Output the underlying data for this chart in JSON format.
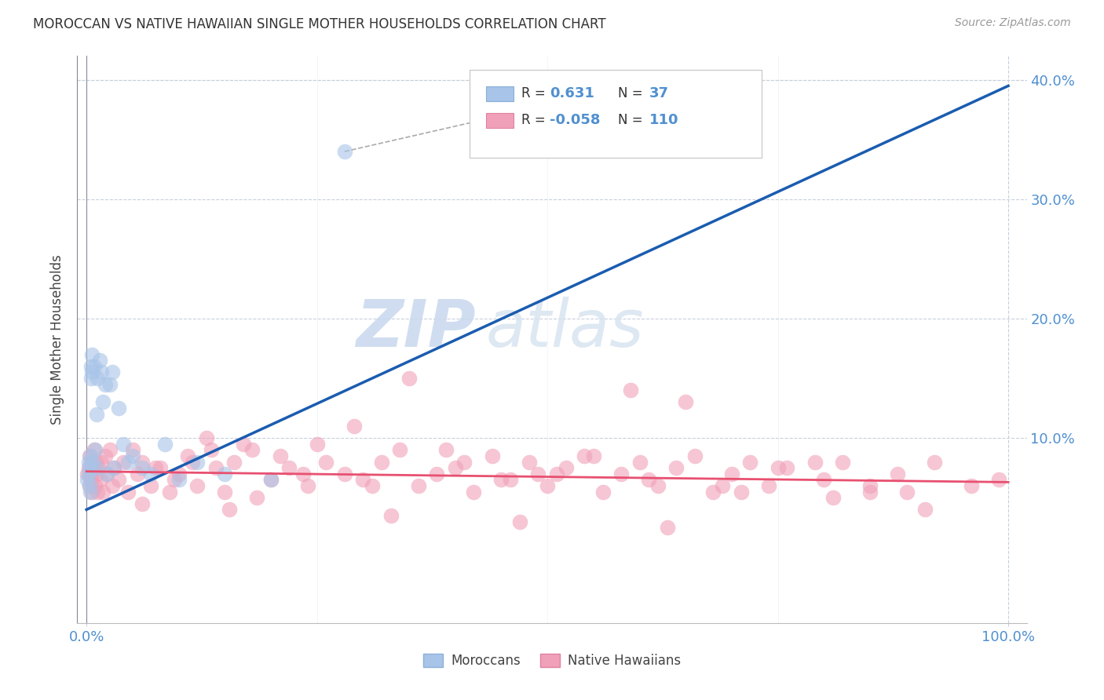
{
  "title": "MOROCCAN VS NATIVE HAWAIIAN SINGLE MOTHER HOUSEHOLDS CORRELATION CHART",
  "source": "Source: ZipAtlas.com",
  "ylabel": "Single Mother Households",
  "watermark_zip": "ZIP",
  "watermark_atlas": "atlas",
  "legend_moroccan_R": "0.631",
  "legend_moroccan_N": "37",
  "legend_hawaiian_R": "-0.058",
  "legend_hawaiian_N": "110",
  "moroccan_color": "#a8c4e8",
  "hawaiian_color": "#f0a0b8",
  "moroccan_line_color": "#1a5cb0",
  "hawaiian_line_color": "#e85070",
  "background_color": "#ffffff",
  "grid_color": "#c8d0dc",
  "tick_color": "#5090d0",
  "moroccan_x": [
    0.001,
    0.002,
    0.002,
    0.003,
    0.003,
    0.004,
    0.004,
    0.005,
    0.005,
    0.006,
    0.006,
    0.007,
    0.008,
    0.009,
    0.01,
    0.011,
    0.012,
    0.014,
    0.016,
    0.018,
    0.02,
    0.022,
    0.025,
    0.028,
    0.03,
    0.035,
    0.04,
    0.045,
    0.05,
    0.06,
    0.07,
    0.085,
    0.1,
    0.12,
    0.15,
    0.2,
    0.28
  ],
  "moroccan_y": [
    0.065,
    0.07,
    0.08,
    0.075,
    0.06,
    0.085,
    0.055,
    0.15,
    0.16,
    0.155,
    0.17,
    0.08,
    0.16,
    0.09,
    0.075,
    0.12,
    0.15,
    0.165,
    0.155,
    0.13,
    0.145,
    0.07,
    0.145,
    0.155,
    0.075,
    0.125,
    0.095,
    0.08,
    0.085,
    0.075,
    0.07,
    0.095,
    0.065,
    0.08,
    0.07,
    0.065,
    0.34
  ],
  "hawaiian_x": [
    0.001,
    0.002,
    0.003,
    0.003,
    0.004,
    0.005,
    0.005,
    0.006,
    0.007,
    0.008,
    0.009,
    0.01,
    0.011,
    0.012,
    0.013,
    0.015,
    0.016,
    0.018,
    0.02,
    0.022,
    0.025,
    0.028,
    0.03,
    0.035,
    0.04,
    0.045,
    0.05,
    0.055,
    0.06,
    0.07,
    0.08,
    0.09,
    0.1,
    0.11,
    0.12,
    0.14,
    0.15,
    0.16,
    0.18,
    0.2,
    0.22,
    0.24,
    0.26,
    0.28,
    0.3,
    0.32,
    0.34,
    0.36,
    0.38,
    0.4,
    0.42,
    0.44,
    0.46,
    0.48,
    0.5,
    0.52,
    0.54,
    0.56,
    0.58,
    0.6,
    0.62,
    0.64,
    0.66,
    0.68,
    0.7,
    0.72,
    0.74,
    0.76,
    0.8,
    0.82,
    0.85,
    0.88,
    0.92,
    0.96,
    0.99,
    0.25,
    0.35,
    0.45,
    0.55,
    0.65,
    0.75,
    0.85,
    0.13,
    0.17,
    0.21,
    0.29,
    0.39,
    0.49,
    0.59,
    0.69,
    0.79,
    0.89,
    0.075,
    0.095,
    0.115,
    0.135,
    0.185,
    0.235,
    0.31,
    0.41,
    0.51,
    0.61,
    0.71,
    0.81,
    0.91,
    0.06,
    0.155,
    0.33,
    0.47,
    0.63
  ],
  "hawaiian_y": [
    0.07,
    0.075,
    0.06,
    0.085,
    0.07,
    0.065,
    0.08,
    0.055,
    0.075,
    0.09,
    0.06,
    0.08,
    0.07,
    0.055,
    0.075,
    0.065,
    0.08,
    0.055,
    0.085,
    0.07,
    0.09,
    0.06,
    0.075,
    0.065,
    0.08,
    0.055,
    0.09,
    0.07,
    0.08,
    0.06,
    0.075,
    0.055,
    0.07,
    0.085,
    0.06,
    0.075,
    0.055,
    0.08,
    0.09,
    0.065,
    0.075,
    0.06,
    0.08,
    0.07,
    0.065,
    0.08,
    0.09,
    0.06,
    0.07,
    0.075,
    0.055,
    0.085,
    0.065,
    0.08,
    0.06,
    0.075,
    0.085,
    0.055,
    0.07,
    0.08,
    0.06,
    0.075,
    0.085,
    0.055,
    0.07,
    0.08,
    0.06,
    0.075,
    0.065,
    0.08,
    0.055,
    0.07,
    0.08,
    0.06,
    0.065,
    0.095,
    0.15,
    0.065,
    0.085,
    0.13,
    0.075,
    0.06,
    0.1,
    0.095,
    0.085,
    0.11,
    0.09,
    0.07,
    0.14,
    0.06,
    0.08,
    0.055,
    0.075,
    0.065,
    0.08,
    0.09,
    0.05,
    0.07,
    0.06,
    0.08,
    0.07,
    0.065,
    0.055,
    0.05,
    0.04,
    0.045,
    0.04,
    0.035,
    0.03,
    0.025
  ],
  "xlim": [
    -0.01,
    1.02
  ],
  "ylim": [
    -0.055,
    0.42
  ],
  "ytick_vals": [
    0.0,
    0.1,
    0.2,
    0.3,
    0.4
  ],
  "ytick_labels_right": [
    "",
    "10.0%",
    "20.0%",
    "30.0%",
    "40.0%"
  ],
  "xtick_vals": [
    0.0,
    1.0
  ],
  "xtick_labels": [
    "0.0%",
    "100.0%"
  ],
  "moroccan_line_x": [
    0.0,
    1.0
  ],
  "moroccan_line_y": [
    0.04,
    0.395
  ],
  "hawaiian_line_x": [
    0.0,
    1.0
  ],
  "hawaiian_line_y": [
    0.072,
    0.063
  ]
}
